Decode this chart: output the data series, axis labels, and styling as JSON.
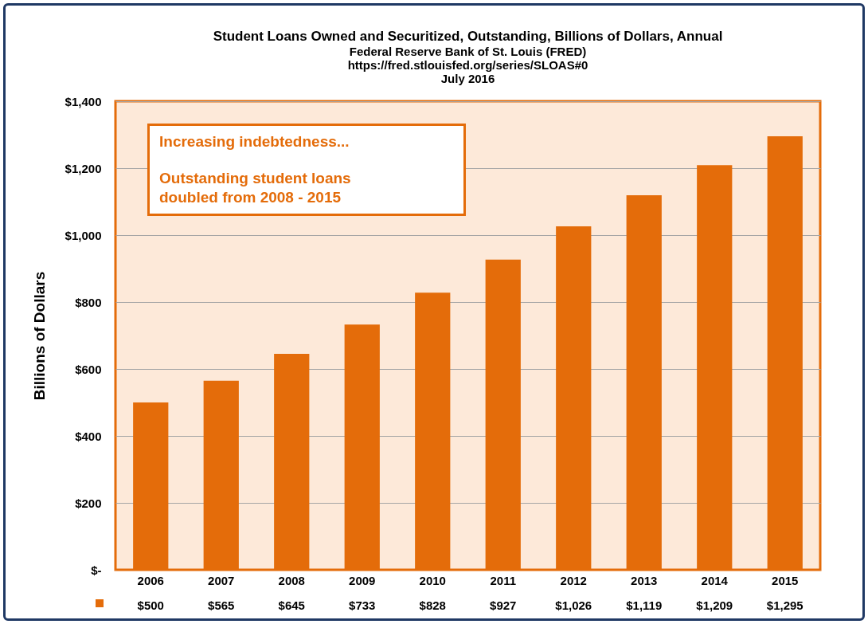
{
  "chart_data": {
    "type": "bar",
    "title": "Student Loans Owned and Securitized, Outstanding, Billions of Dollars, Annual",
    "subtitle": "Federal Reserve Bank of St. Louis (FRED)\nhttps://fred.stlouisfed.org/series/SLOAS#0\nJuly 2016",
    "ylabel": "Billions of Dollars",
    "categories": [
      "2006",
      "2007",
      "2008",
      "2009",
      "2010",
      "2011",
      "2012",
      "2013",
      "2014",
      "2015"
    ],
    "values": [
      500,
      565,
      645,
      733,
      828,
      927,
      1026,
      1119,
      1209,
      1295
    ],
    "value_labels": [
      "$500",
      "$565",
      "$645",
      "$733",
      "$828",
      "$927",
      "$1,026",
      "$1,119",
      "$1,209",
      "$1,295"
    ],
    "color": "#e46c0a",
    "ylim": [
      0,
      1400
    ],
    "yticks": [
      {
        "value": 0,
        "label": "$-"
      },
      {
        "value": 200,
        "label": "$200"
      },
      {
        "value": 400,
        "label": "$400"
      },
      {
        "value": 600,
        "label": "$600"
      },
      {
        "value": 800,
        "label": "$800"
      },
      {
        "value": 1000,
        "label": "$1,000"
      },
      {
        "value": 1200,
        "label": "$1,200"
      },
      {
        "value": 1400,
        "label": "$1,400"
      }
    ],
    "grid": "y",
    "annotations": [
      "Increasing indebtedness...",
      "Outstanding student loans\ndoubled from 2008 - 2015"
    ]
  }
}
